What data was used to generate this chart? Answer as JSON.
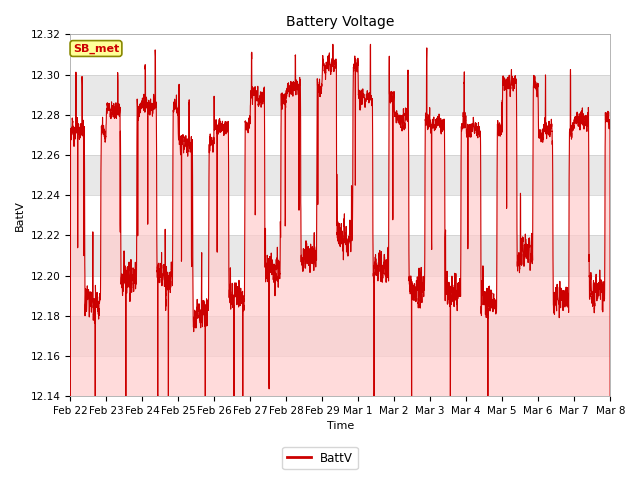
{
  "title": "Battery Voltage",
  "xlabel": "Time",
  "ylabel": "BattV",
  "ylim": [
    12.14,
    12.32
  ],
  "yticks": [
    12.14,
    12.16,
    12.18,
    12.2,
    12.22,
    12.24,
    12.26,
    12.28,
    12.3,
    12.32
  ],
  "line_color": "#cc0000",
  "fill_color": "#ff8080",
  "line_width": 0.8,
  "bg_color": "#ffffff",
  "band_colors": [
    "#ffffff",
    "#e8e8e8"
  ],
  "legend_label": "BattV",
  "annotation_text": "SB_met",
  "annotation_bg": "#ffff99",
  "annotation_border": "#888800",
  "annotation_text_color": "#cc0000",
  "x_tick_labels": [
    "Feb 22",
    "Feb 23",
    "Feb 24",
    "Feb 25",
    "Feb 26",
    "Feb 27",
    "Feb 28",
    "Feb 29",
    "Mar 1",
    "Mar 2",
    "Mar 3",
    "Mar 4",
    "Mar 5",
    "Mar 6",
    "Mar 7",
    "Mar 8"
  ],
  "figsize": [
    6.4,
    4.8
  ],
  "dpi": 100
}
